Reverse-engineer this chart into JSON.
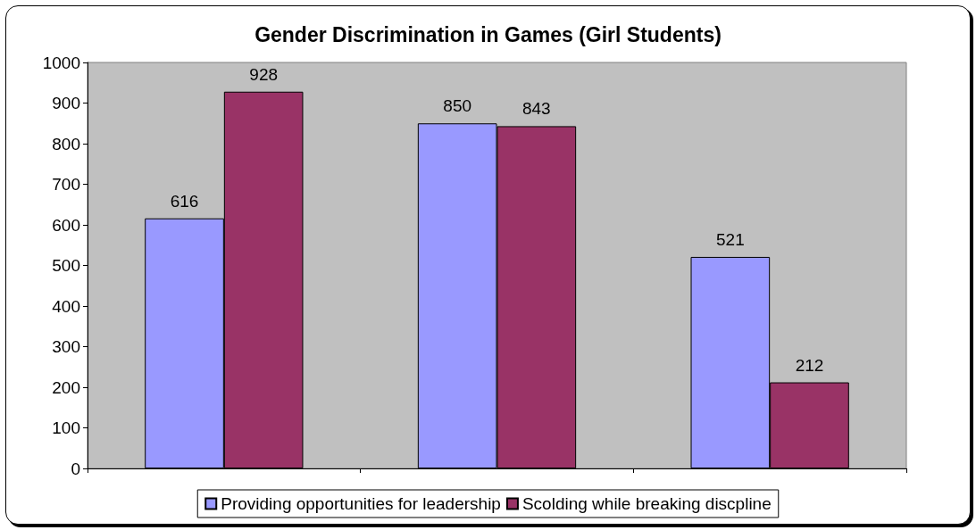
{
  "chart_data": {
    "type": "bar",
    "title": "Gender Discrimination in Games (Girl Students)",
    "categories": [
      null,
      null,
      null
    ],
    "series": [
      {
        "name": "Providing opportunities for leadership",
        "color": "#9999ff",
        "values": [
          616,
          850,
          521
        ]
      },
      {
        "name": "Scolding while breaking discpline",
        "color": "#993366",
        "values": [
          928,
          843,
          212
        ]
      }
    ],
    "ylim": [
      0,
      1000
    ],
    "yticks": [
      0,
      100,
      200,
      300,
      400,
      500,
      600,
      700,
      800,
      900,
      1000
    ],
    "grid": false,
    "legend": "bottom",
    "data_labels": true
  }
}
